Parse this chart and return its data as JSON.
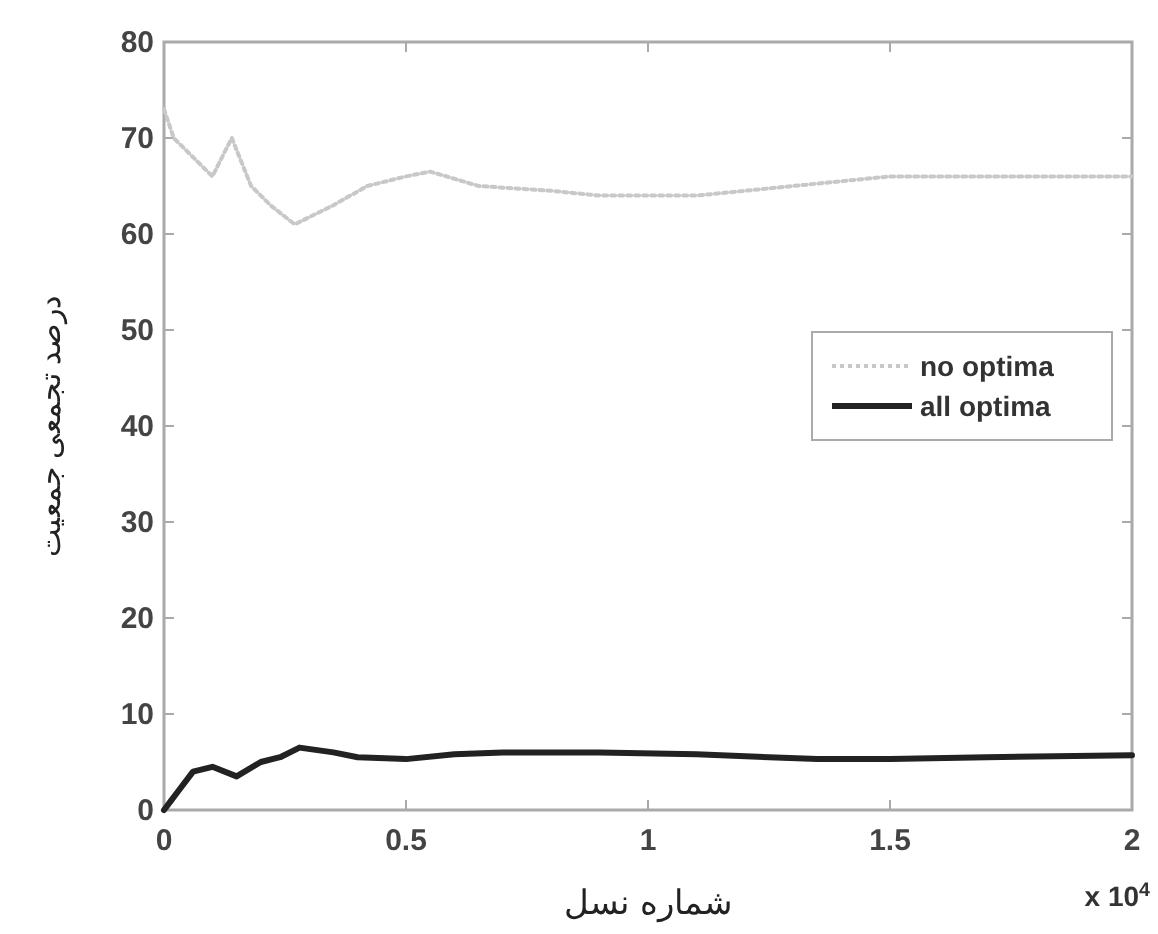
{
  "chart_data": {
    "type": "line",
    "xlabel": "شماره نسل",
    "ylabel": "درصد تجمعی جمعیت",
    "xlim": [
      0,
      2
    ],
    "ylim": [
      0,
      80
    ],
    "xticks": [
      0,
      0.5,
      1,
      1.5,
      2
    ],
    "yticks": [
      0,
      10,
      20,
      30,
      40,
      50,
      60,
      70,
      80
    ],
    "annotations": [
      "x 10$^{4}$"
    ],
    "legend": "right",
    "grid": false,
    "series": [
      {
        "name": "no optima",
        "color": "#c8c8c8",
        "line_style": "dotted",
        "x": [
          0,
          0.02,
          0.06,
          0.1,
          0.14,
          0.18,
          0.22,
          0.27,
          0.35,
          0.42,
          0.5,
          0.55,
          0.65,
          0.8,
          0.9,
          1.1,
          1.3,
          1.5,
          1.7,
          2
        ],
        "values": [
          73,
          70,
          68,
          66,
          70,
          65,
          63,
          61,
          63,
          65,
          66,
          66.5,
          65,
          64.5,
          64,
          64,
          65,
          66,
          66,
          66
        ]
      },
      {
        "name": "all optima",
        "color": "#222222",
        "line_style": "solid",
        "x": [
          0,
          0.015,
          0.03,
          0.06,
          0.1,
          0.15,
          0.2,
          0.24,
          0.28,
          0.35,
          0.4,
          0.5,
          0.6,
          0.7,
          0.9,
          1.1,
          1.35,
          1.5,
          1.7,
          2
        ],
        "values": [
          0,
          1,
          2,
          4,
          4.5,
          3.5,
          5,
          5.5,
          6.5,
          6,
          5.5,
          5.3,
          5.8,
          6,
          6,
          5.8,
          5.3,
          5.3,
          5.5,
          5.7
        ]
      }
    ]
  }
}
